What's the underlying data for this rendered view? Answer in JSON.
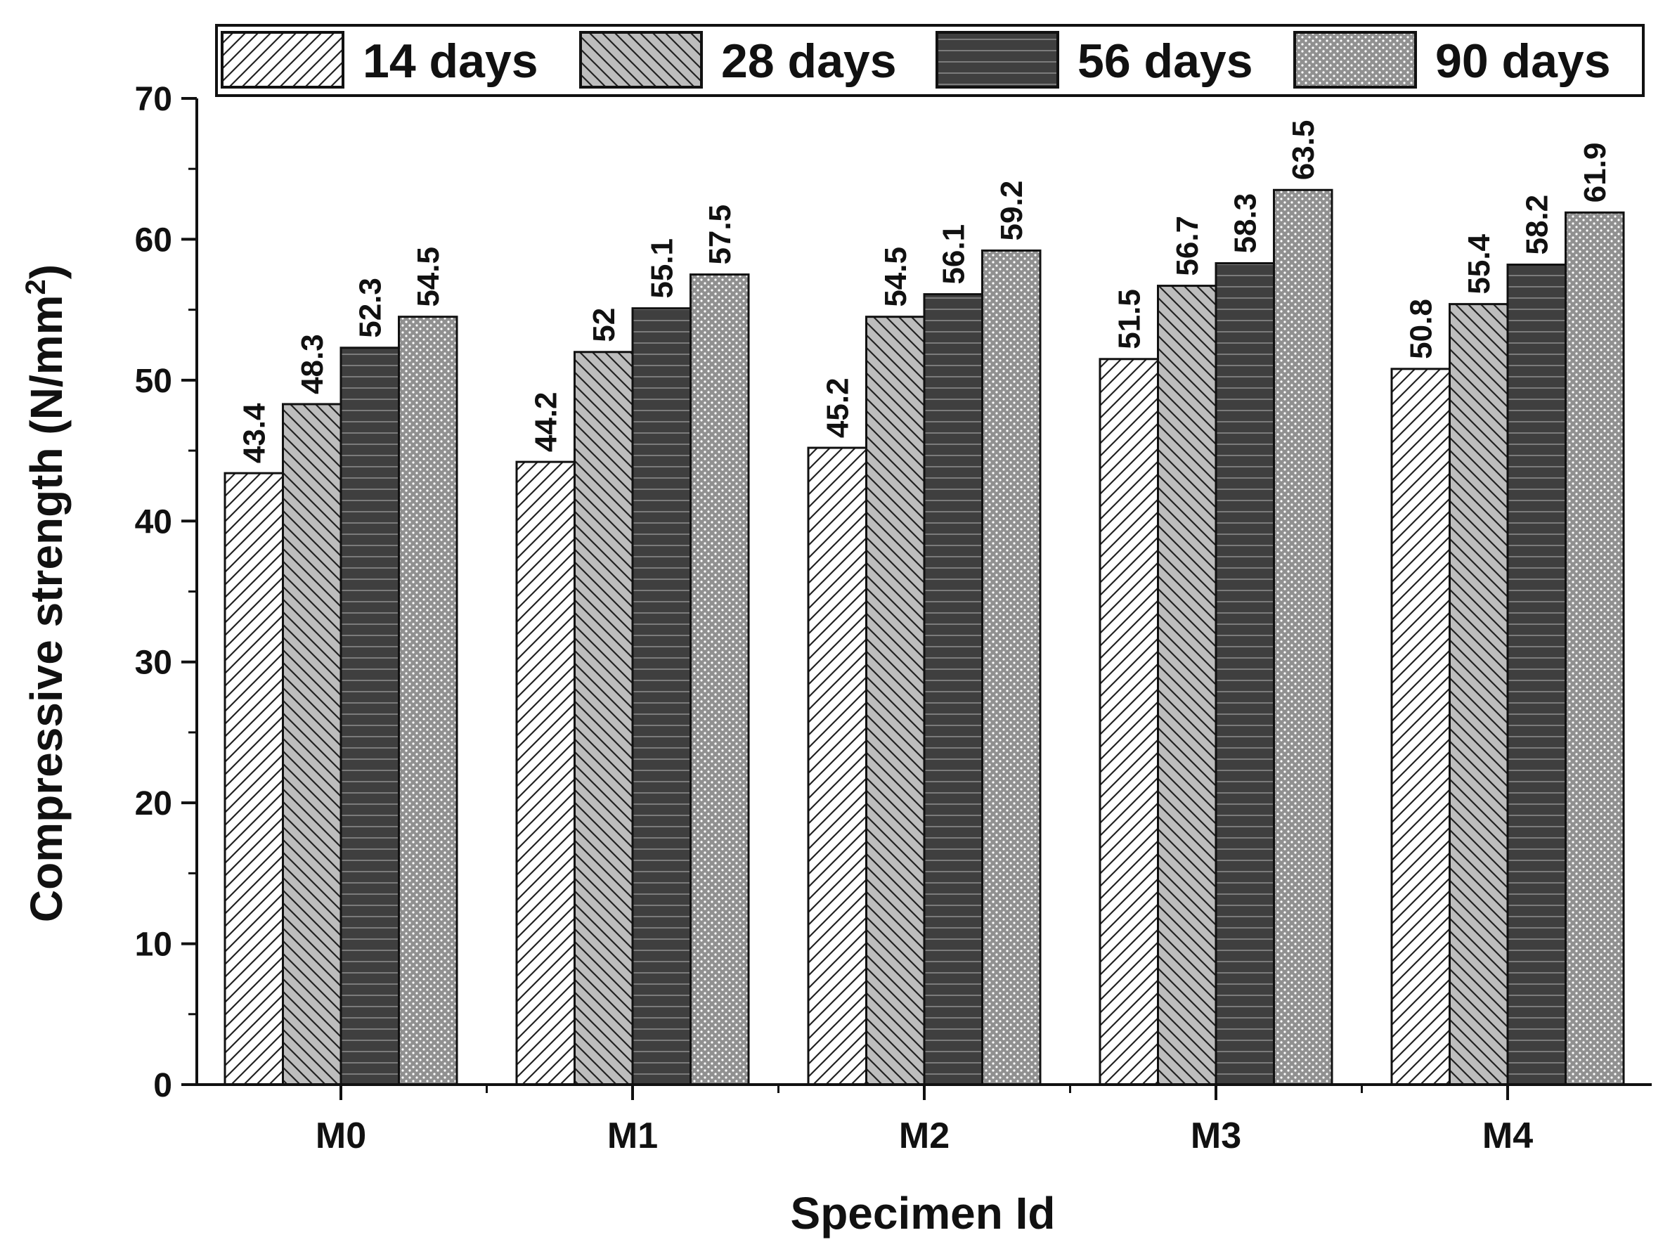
{
  "chart_data": {
    "type": "bar",
    "title": "",
    "xlabel": "Specimen Id",
    "ylabel": "Compressive strength (N/mm",
    "ylabel_superscript": "2",
    "ylabel_suffix": ")",
    "categories": [
      "M0",
      "M1",
      "M2",
      "M3",
      "M4"
    ],
    "series": [
      {
        "name": "14 days",
        "pattern": "diagonal-forward",
        "values": [
          43.4,
          44.2,
          45.2,
          51.5,
          50.8
        ],
        "labels": [
          "43.4",
          "44.2",
          "45.2",
          "51.5",
          "50.8"
        ]
      },
      {
        "name": "28 days",
        "pattern": "diagonal-back",
        "values": [
          48.3,
          52,
          54.5,
          56.7,
          55.4
        ],
        "labels": [
          "48.3",
          "52",
          "54.5",
          "56.7",
          "55.4"
        ]
      },
      {
        "name": "56 days",
        "pattern": "horizontal-lines",
        "values": [
          52.3,
          55.1,
          56.1,
          58.3,
          58.2
        ],
        "labels": [
          "52.3",
          "55.1",
          "56.1",
          "58.3",
          "58.2"
        ]
      },
      {
        "name": "90 days",
        "pattern": "dots",
        "values": [
          54.5,
          57.5,
          59.2,
          63.5,
          61.9
        ],
        "labels": [
          "54.5",
          "57.5",
          "59.2",
          "63.5",
          "61.9"
        ]
      }
    ],
    "ylim": [
      0,
      70
    ],
    "yticks": [
      0,
      10,
      20,
      30,
      40,
      50,
      60,
      70
    ],
    "grid": false,
    "legend_position": "top"
  }
}
